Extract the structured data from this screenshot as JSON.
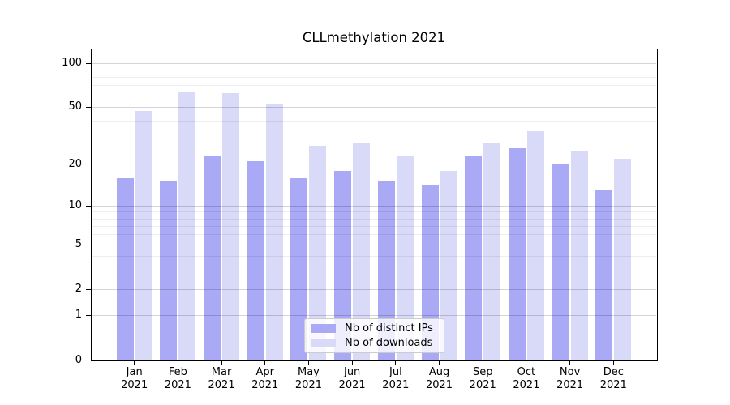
{
  "chart_data": {
    "type": "bar",
    "title": "CLLmethylation 2021",
    "categories": [
      "Jan 2021",
      "Feb 2021",
      "Mar 2021",
      "Apr 2021",
      "May 2021",
      "Jun 2021",
      "Jul 2021",
      "Aug 2021",
      "Sep 2021",
      "Oct 2021",
      "Nov 2021",
      "Dec 2021"
    ],
    "series": [
      {
        "name": "Nb of distinct IPs",
        "color": "#a9a9f6",
        "values": [
          16,
          15,
          23,
          21,
          16,
          18,
          15,
          14,
          23,
          26,
          20,
          13
        ]
      },
      {
        "name": "Nb of downloads",
        "color": "#d9d9f8",
        "values": [
          47,
          63,
          62,
          53,
          27,
          28,
          23,
          18,
          28,
          34,
          25,
          22
        ]
      }
    ],
    "xlabel": "",
    "ylabel": "",
    "yscale": "log10(value+1)",
    "ylim": [
      0,
      126
    ],
    "yticks": [
      0,
      1,
      2,
      5,
      10,
      20,
      50,
      100
    ],
    "minor_gridline_values": [
      3,
      4,
      6,
      7,
      8,
      9,
      30,
      40,
      60,
      70,
      80,
      90
    ],
    "grid": "horizontal",
    "legend_position": "lower center"
  },
  "colors": {
    "background": "#ffffff",
    "axis": "#000000",
    "bar_distinct_ips": "#a9a9f6",
    "bar_downloads": "#d9d9f8"
  }
}
